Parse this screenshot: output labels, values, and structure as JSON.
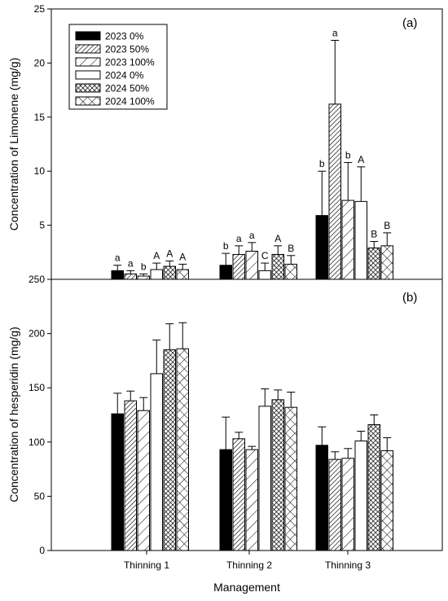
{
  "chart_data": [
    {
      "type": "bar",
      "panel_label": "(a)",
      "ylabel": "Concentration of Limonene (mg/g)",
      "ylim": [
        0,
        25
      ],
      "y_ticks": [
        5,
        10,
        15,
        20,
        25
      ],
      "y_tick_labels": [
        "5",
        "10",
        "15",
        "20",
        "25"
      ],
      "categories": [
        "Thinning 1",
        "Thinning 2",
        "Thinning 3"
      ],
      "legend_position": "top-left",
      "series": [
        {
          "name": "2023 0%",
          "pattern": "solid",
          "values": [
            0.8,
            1.3,
            5.9
          ],
          "errors": [
            0.5,
            1.1,
            4.1
          ],
          "labels": [
            "a",
            "b",
            "b"
          ]
        },
        {
          "name": "2023 50%",
          "pattern": "dense-hatch",
          "values": [
            0.5,
            2.3,
            16.2
          ],
          "errors": [
            0.3,
            0.8,
            5.9
          ],
          "labels": [
            "a",
            "a",
            "a"
          ]
        },
        {
          "name": "2023 100%",
          "pattern": "sparse-hatch",
          "values": [
            0.3,
            2.6,
            7.3
          ],
          "errors": [
            0.2,
            0.8,
            3.5
          ],
          "labels": [
            "b",
            "a",
            "b"
          ]
        },
        {
          "name": "2024 0%",
          "pattern": "open",
          "values": [
            0.9,
            0.8,
            7.2
          ],
          "errors": [
            0.6,
            0.7,
            3.2
          ],
          "labels": [
            "A",
            "C",
            "A"
          ]
        },
        {
          "name": "2024 50%",
          "pattern": "crosshatch",
          "values": [
            1.2,
            2.3,
            2.9
          ],
          "errors": [
            0.5,
            0.8,
            0.6
          ],
          "labels": [
            "A",
            "A",
            "B"
          ]
        },
        {
          "name": "2024 100%",
          "pattern": "x-hatch",
          "values": [
            0.9,
            1.4,
            3.1
          ],
          "errors": [
            0.5,
            0.8,
            1.2
          ],
          "labels": [
            "A",
            "B",
            "B"
          ]
        }
      ]
    },
    {
      "type": "bar",
      "panel_label": "(b)",
      "ylabel": "Concentration of hesperidin (mg/g)",
      "xlabel": "Management",
      "ylim": [
        0,
        250
      ],
      "y_ticks": [
        0,
        50,
        100,
        150,
        200,
        250
      ],
      "y_tick_labels": [
        "0",
        "50",
        "100",
        "150",
        "200",
        "250"
      ],
      "categories": [
        "Thinning 1",
        "Thinning 2",
        "Thinning 3"
      ],
      "series": [
        {
          "name": "2023 0%",
          "pattern": "solid",
          "values": [
            126,
            93,
            97
          ],
          "errors": [
            19,
            30,
            17
          ]
        },
        {
          "name": "2023 50%",
          "pattern": "dense-hatch",
          "values": [
            138,
            103,
            84
          ],
          "errors": [
            9,
            6,
            7
          ]
        },
        {
          "name": "2023 100%",
          "pattern": "sparse-hatch",
          "values": [
            129,
            93,
            85
          ],
          "errors": [
            12,
            3,
            9
          ]
        },
        {
          "name": "2024 0%",
          "pattern": "open",
          "values": [
            163,
            133,
            101
          ],
          "errors": [
            31,
            16,
            9
          ]
        },
        {
          "name": "2024 50%",
          "pattern": "crosshatch",
          "values": [
            185,
            139,
            116
          ],
          "errors": [
            24,
            9,
            9
          ]
        },
        {
          "name": "2024 100%",
          "pattern": "x-hatch",
          "values": [
            186,
            132,
            92
          ],
          "errors": [
            24,
            14,
            12
          ]
        }
      ]
    }
  ]
}
